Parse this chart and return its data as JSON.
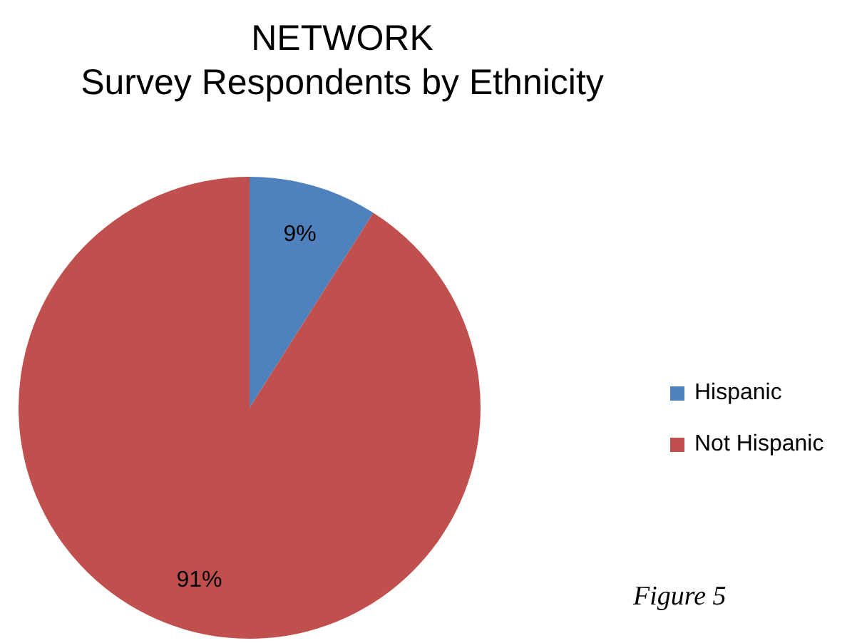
{
  "chart_data": {
    "type": "pie",
    "title": "NETWORK",
    "subtitle": "Survey Respondents by Ethnicity",
    "categories": [
      "Hispanic",
      "Not Hispanic"
    ],
    "values": [
      9,
      91
    ],
    "colors": [
      "#4f81bd",
      "#c0504d"
    ],
    "value_labels": [
      "9%",
      "91%"
    ],
    "legend": "right",
    "annotations": [
      "Figure 5"
    ]
  }
}
